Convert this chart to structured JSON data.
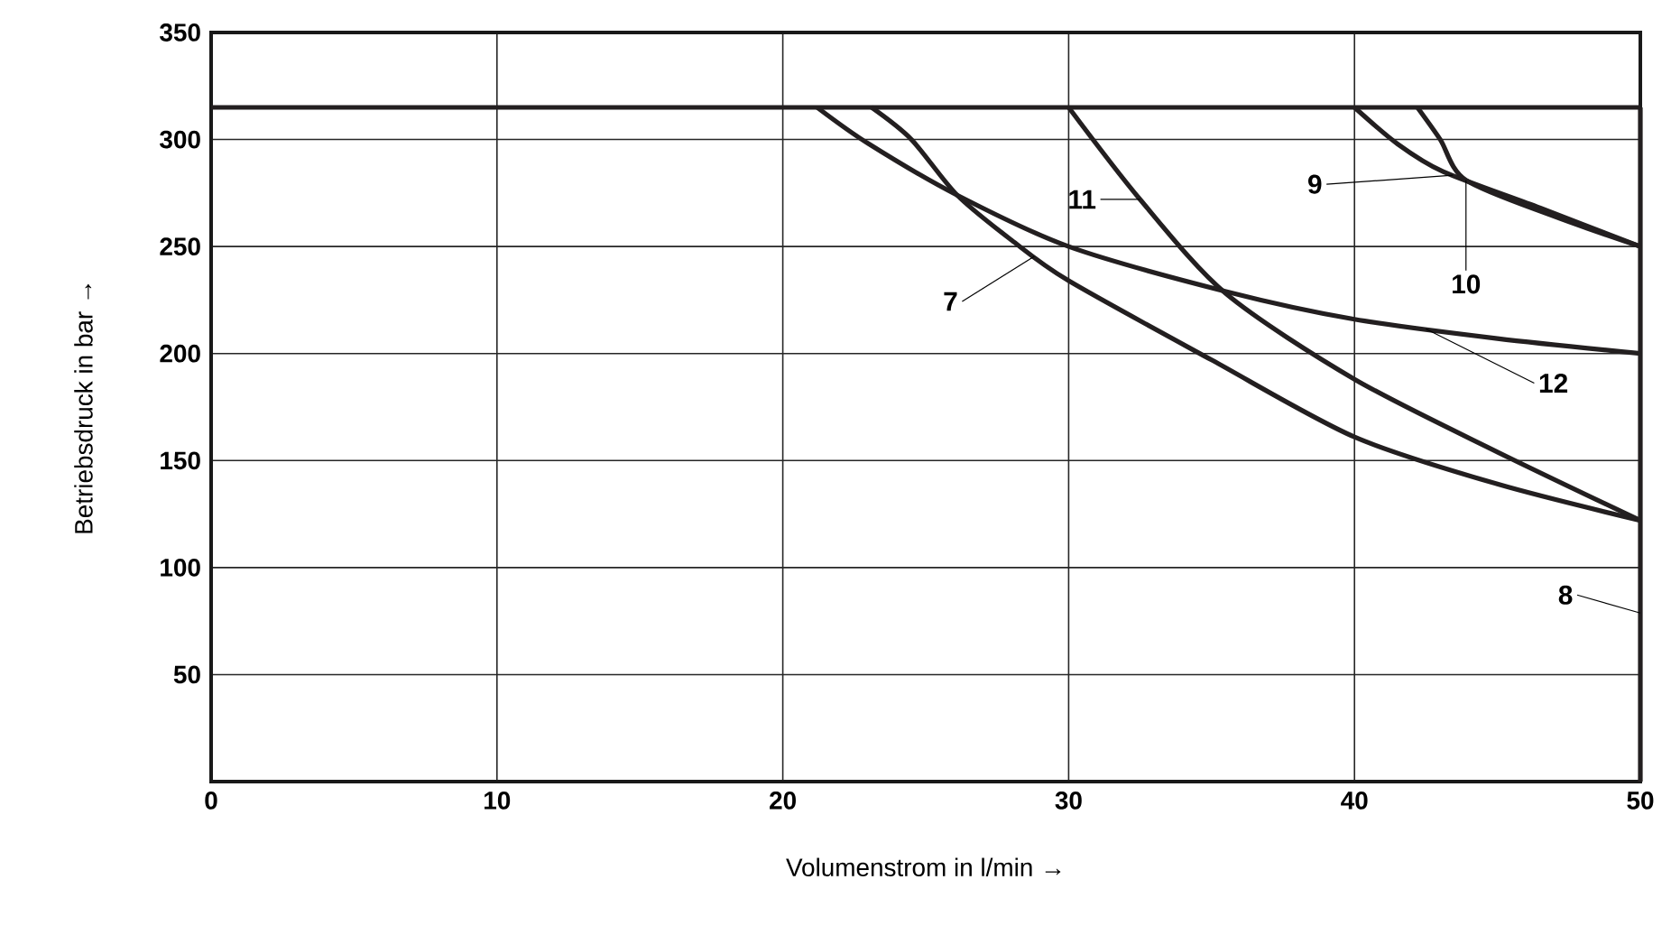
{
  "chart_data": {
    "type": "line",
    "xlabel": "Volumenstrom in l/min →",
    "ylabel": "Betriebsdruck in bar →",
    "xlim": [
      0,
      50
    ],
    "ylim": [
      0,
      350
    ],
    "xticks": [
      0,
      10,
      20,
      30,
      40,
      50
    ],
    "yticks": [
      50,
      100,
      150,
      200,
      250,
      300,
      350
    ],
    "grid": true,
    "series": [
      {
        "name": "7",
        "color": "#231f20",
        "x": [
          23.1,
          24.5,
          26.1,
          28,
          30,
          35,
          40,
          45,
          50
        ],
        "values": [
          315,
          300,
          274,
          253,
          234,
          197,
          161,
          139,
          122
        ]
      },
      {
        "name": "8",
        "color": "#231f20",
        "x": [
          50,
          50
        ],
        "values": [
          0,
          315
        ]
      },
      {
        "name": "9",
        "color": "#231f20",
        "x": [
          40,
          41.5,
          43.1,
          46.5,
          50
        ],
        "values": [
          315,
          298,
          285,
          268,
          250
        ]
      },
      {
        "name": "10",
        "color": "#231f20",
        "x": [
          42.2,
          43,
          43.9,
          47,
          50
        ],
        "values": [
          315,
          300,
          281,
          264,
          250
        ]
      },
      {
        "name": "11",
        "color": "#231f20",
        "x": [
          30,
          32.5,
          35.5,
          40,
          45,
          50
        ],
        "values": [
          315,
          272,
          228,
          188,
          154,
          122
        ]
      },
      {
        "name": "12",
        "color": "#231f20",
        "x": [
          21.2,
          23,
          26.1,
          30,
          35.5,
          40,
          45,
          50
        ],
        "values": [
          315,
          298,
          274,
          250,
          229,
          216,
          207,
          200
        ]
      },
      {
        "color": "#231f20",
        "x": [
          0,
          50
        ],
        "values": [
          315,
          315
        ]
      }
    ]
  }
}
